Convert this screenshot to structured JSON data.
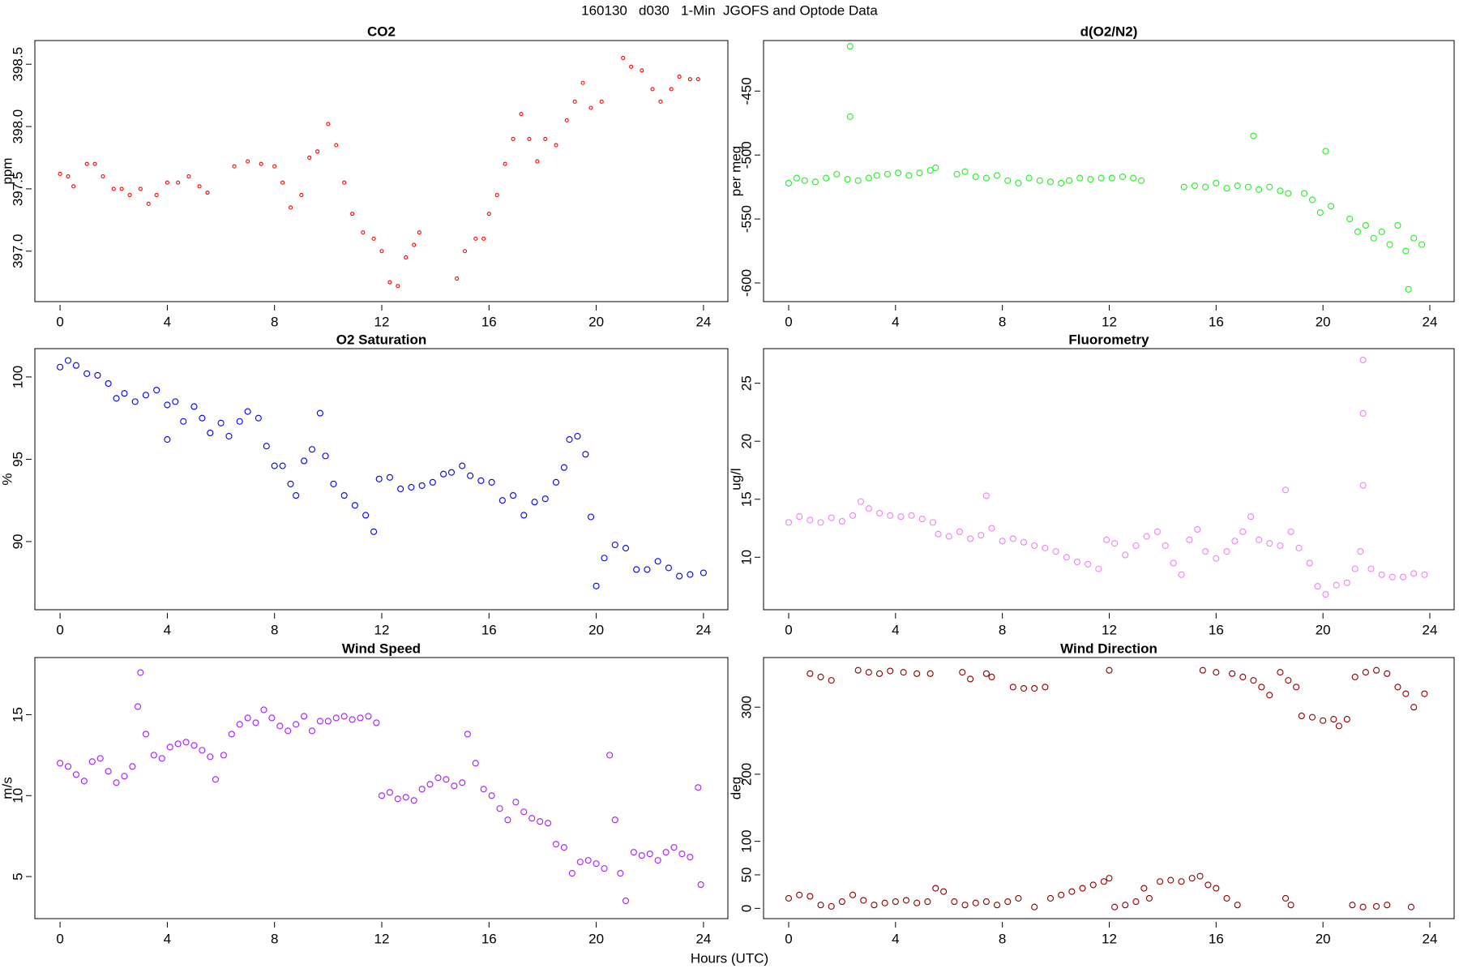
{
  "title": "160130   d030   1-Min  JGOFS and Optode Data",
  "x_label": "Hours (UTC)",
  "chart_data": [
    {
      "type": "scatter",
      "title": "CO2",
      "y_label": "ppm",
      "color": "#ff0000",
      "xlim": [
        -0.94,
        24.91
      ],
      "xticks": [
        0,
        4,
        8,
        12,
        16,
        20,
        24
      ],
      "ylim": [
        396.595,
        398.69
      ],
      "yticks": [
        {
          "value": 397.0,
          "label": "397.0"
        },
        {
          "value": 397.5,
          "label": "397.5"
        },
        {
          "value": 398.0,
          "label": "398.0"
        },
        {
          "value": 398.5,
          "label": "398.5"
        }
      ],
      "x": [
        0.0,
        0.3,
        0.5,
        1.0,
        1.3,
        1.6,
        2.0,
        2.3,
        2.6,
        3.0,
        3.3,
        3.6,
        4.0,
        4.4,
        4.8,
        5.2,
        5.5,
        6.5,
        7.0,
        7.5,
        8.0,
        8.3,
        8.6,
        9.0,
        9.3,
        9.6,
        10.0,
        10.3,
        10.6,
        10.9,
        11.3,
        11.7,
        12.0,
        12.3,
        12.6,
        12.9,
        13.2,
        13.4,
        14.8,
        15.1,
        15.5,
        15.8,
        16.0,
        16.3,
        16.6,
        16.9,
        17.2,
        17.5,
        17.8,
        18.1,
        18.5,
        18.9,
        19.2,
        19.5,
        19.8,
        20.2,
        21.0,
        21.3,
        21.7,
        22.1,
        22.4,
        22.8,
        23.1,
        23.5,
        23.8
      ],
      "values": [
        397.62,
        397.6,
        397.52,
        397.7,
        397.7,
        397.6,
        397.5,
        397.5,
        397.45,
        397.5,
        397.38,
        397.45,
        397.55,
        397.55,
        397.6,
        397.52,
        397.47,
        397.68,
        397.72,
        397.7,
        397.68,
        397.55,
        397.35,
        397.45,
        397.75,
        397.8,
        398.02,
        397.85,
        397.55,
        397.3,
        397.15,
        397.1,
        397.0,
        396.75,
        396.72,
        396.95,
        397.05,
        397.15,
        396.78,
        397.0,
        397.1,
        397.1,
        397.3,
        397.45,
        397.7,
        397.9,
        398.1,
        397.9,
        397.72,
        397.9,
        397.85,
        398.05,
        398.2,
        398.35,
        398.15,
        398.2,
        398.55,
        398.48,
        398.45,
        398.3,
        398.2,
        398.3,
        398.4,
        398.38,
        398.38
      ]
    },
    {
      "type": "scatter",
      "title": "d(O2/N2)",
      "y_label": "per meg",
      "color": "#22ee22",
      "xlim": [
        -0.94,
        24.91
      ],
      "xticks": [
        0,
        4,
        8,
        12,
        16,
        20,
        24
      ],
      "ylim": [
        -614.6,
        -410.5
      ],
      "yticks": [
        -600,
        -550,
        -500,
        -450
      ],
      "x": [
        0,
        0.3,
        0.6,
        1.0,
        1.4,
        1.8,
        2.2,
        2.3,
        2.3,
        2.6,
        3.0,
        3.3,
        3.7,
        4.1,
        4.5,
        4.9,
        5.3,
        5.5,
        6.3,
        6.6,
        7.0,
        7.4,
        7.8,
        8.2,
        8.6,
        9.0,
        9.4,
        9.8,
        10.2,
        10.5,
        10.9,
        11.3,
        11.7,
        12.1,
        12.5,
        12.9,
        13.2,
        14.8,
        15.2,
        15.6,
        16.0,
        16.4,
        16.8,
        17.2,
        17.4,
        17.6,
        18.0,
        18.4,
        18.7,
        19.3,
        19.6,
        19.9,
        20.1,
        20.3,
        21.0,
        21.3,
        21.6,
        21.9,
        22.2,
        22.5,
        22.8,
        23.1,
        23.2,
        23.4,
        23.7
      ],
      "values": [
        -522,
        -518,
        -520,
        -521,
        -518,
        -515,
        -519,
        -415,
        -470,
        -520,
        -518,
        -516,
        -515,
        -514,
        -516,
        -514,
        -512,
        -510,
        -515,
        -513,
        -517,
        -518,
        -516,
        -520,
        -522,
        -518,
        -520,
        -521,
        -522,
        -520,
        -518,
        -519,
        -518,
        -518,
        -517,
        -518,
        -520,
        -525,
        -524,
        -525,
        -522,
        -526,
        -524,
        -525,
        -485,
        -527,
        -525,
        -528,
        -530,
        -530,
        -535,
        -545,
        -497,
        -540,
        -550,
        -560,
        -555,
        -565,
        -560,
        -570,
        -555,
        -575,
        -605,
        -565,
        -570
      ]
    },
    {
      "type": "scatter",
      "title": "O2 Saturation",
      "y_label": "%",
      "color": "#0000ee",
      "xlim": [
        -0.94,
        24.91
      ],
      "xticks": [
        0,
        4,
        8,
        12,
        16,
        20,
        24
      ],
      "ylim": [
        85.86,
        101.72
      ],
      "yticks": [
        90,
        95,
        100
      ],
      "x": [
        0,
        0.3,
        0.6,
        1.0,
        1.4,
        1.8,
        2.1,
        2.4,
        2.8,
        3.2,
        3.6,
        4.0,
        4.0,
        4.3,
        4.6,
        5.0,
        5.3,
        5.6,
        6.0,
        6.3,
        6.7,
        7.0,
        7.4,
        7.7,
        8.0,
        8.3,
        8.6,
        8.8,
        9.1,
        9.4,
        9.7,
        9.9,
        10.2,
        10.6,
        11.0,
        11.4,
        11.7,
        11.9,
        12.3,
        12.7,
        13.1,
        13.5,
        13.9,
        14.3,
        14.6,
        15.0,
        15.3,
        15.7,
        16.1,
        16.5,
        16.9,
        17.3,
        17.7,
        18.1,
        18.5,
        18.8,
        19.0,
        19.3,
        19.6,
        19.8,
        20.0,
        20.3,
        20.7,
        21.1,
        21.5,
        21.9,
        22.3,
        22.7,
        23.1,
        23.5,
        24.0
      ],
      "values": [
        100.6,
        101.0,
        100.7,
        100.2,
        100.1,
        99.6,
        98.7,
        99.0,
        98.5,
        98.9,
        99.2,
        98.3,
        96.2,
        98.5,
        97.3,
        98.2,
        97.5,
        96.6,
        97.2,
        96.4,
        97.3,
        97.9,
        97.5,
        95.8,
        94.6,
        94.6,
        93.5,
        92.8,
        94.9,
        95.6,
        97.8,
        95.2,
        93.5,
        92.8,
        92.2,
        91.6,
        90.6,
        93.8,
        93.9,
        93.2,
        93.3,
        93.4,
        93.6,
        94.1,
        94.2,
        94.6,
        94.0,
        93.7,
        93.6,
        92.5,
        92.8,
        91.6,
        92.4,
        92.6,
        93.6,
        94.5,
        96.2,
        96.4,
        95.3,
        91.5,
        87.3,
        89.0,
        89.8,
        89.6,
        88.3,
        88.3,
        88.8,
        88.4,
        87.9,
        88.0,
        88.1
      ]
    },
    {
      "type": "scatter",
      "title": "Fluorometry",
      "y_label": "ug/l",
      "color": "#ee82ee",
      "xlim": [
        -0.94,
        24.91
      ],
      "xticks": [
        0,
        4,
        8,
        12,
        16,
        20,
        24
      ],
      "ylim": [
        5.48,
        27.98
      ],
      "yticks": [
        10,
        15,
        20,
        25
      ],
      "x": [
        0,
        0.4,
        0.8,
        1.2,
        1.6,
        2.0,
        2.4,
        2.7,
        3.0,
        3.4,
        3.8,
        4.2,
        4.6,
        5.0,
        5.4,
        5.6,
        6.0,
        6.4,
        6.8,
        7.2,
        7.4,
        7.6,
        8.0,
        8.4,
        8.8,
        9.2,
        9.6,
        10.0,
        10.4,
        10.8,
        11.2,
        11.6,
        11.9,
        12.2,
        12.6,
        13.0,
        13.4,
        13.8,
        14.1,
        14.4,
        14.7,
        15.0,
        15.3,
        15.6,
        16.0,
        16.4,
        16.7,
        17.0,
        17.3,
        17.6,
        18.0,
        18.4,
        18.6,
        18.8,
        19.1,
        19.5,
        19.8,
        20.1,
        20.5,
        20.9,
        21.2,
        21.4,
        21.5,
        21.5,
        21.5,
        21.8,
        22.2,
        22.6,
        23.0,
        23.4,
        23.8
      ],
      "values": [
        13,
        13.5,
        13.2,
        13.0,
        13.4,
        13.1,
        13.6,
        14.8,
        14.2,
        13.8,
        13.6,
        13.5,
        13.6,
        13.3,
        13.0,
        12.0,
        11.8,
        12.2,
        11.6,
        11.9,
        15.3,
        12.5,
        11.4,
        11.6,
        11.3,
        11.0,
        10.8,
        10.5,
        10.0,
        9.6,
        9.4,
        9.0,
        11.5,
        11.2,
        10.2,
        11.0,
        11.8,
        12.2,
        11.0,
        9.5,
        8.5,
        11.5,
        12.4,
        10.5,
        9.9,
        10.5,
        11.4,
        12.2,
        13.5,
        11.5,
        11.2,
        11.0,
        15.8,
        12.2,
        10.8,
        9.5,
        7.5,
        6.8,
        7.6,
        7.8,
        9.0,
        10.5,
        22.4,
        27.0,
        16.2,
        9.0,
        8.5,
        8.3,
        8.3,
        8.6,
        8.5
      ]
    },
    {
      "type": "scatter",
      "title": "Wind Speed",
      "y_label": "m/s",
      "color": "#a020f0",
      "xlim": [
        -0.94,
        24.91
      ],
      "xticks": [
        0,
        4,
        8,
        12,
        16,
        20,
        24
      ],
      "ylim": [
        2.4,
        18.53
      ],
      "yticks": [
        5,
        10,
        15
      ],
      "x": [
        0,
        0.3,
        0.6,
        0.9,
        1.2,
        1.5,
        1.8,
        2.1,
        2.4,
        2.7,
        2.9,
        3.0,
        3.2,
        3.5,
        3.8,
        4.1,
        4.4,
        4.7,
        5.0,
        5.3,
        5.6,
        5.8,
        6.1,
        6.4,
        6.7,
        7.0,
        7.3,
        7.6,
        7.9,
        8.2,
        8.5,
        8.8,
        9.1,
        9.4,
        9.7,
        10.0,
        10.3,
        10.6,
        10.9,
        11.2,
        11.5,
        11.8,
        12.0,
        12.3,
        12.6,
        12.9,
        13.2,
        13.5,
        13.8,
        14.1,
        14.4,
        14.7,
        15.0,
        15.2,
        15.5,
        15.8,
        16.1,
        16.4,
        16.7,
        17.0,
        17.3,
        17.6,
        17.9,
        18.2,
        18.5,
        18.8,
        19.1,
        19.4,
        19.7,
        20.0,
        20.3,
        20.5,
        20.7,
        20.9,
        21.1,
        21.4,
        21.7,
        22.0,
        22.3,
        22.6,
        22.9,
        23.2,
        23.5,
        23.8,
        23.9
      ],
      "values": [
        12.0,
        11.8,
        11.3,
        10.9,
        12.1,
        12.3,
        11.5,
        10.8,
        11.2,
        11.8,
        15.5,
        17.6,
        13.8,
        12.5,
        12.3,
        13.0,
        13.2,
        13.3,
        13.1,
        12.8,
        12.4,
        11.0,
        12.5,
        13.8,
        14.4,
        14.8,
        14.5,
        15.3,
        14.8,
        14.3,
        14.0,
        14.4,
        14.9,
        14.0,
        14.6,
        14.6,
        14.8,
        14.9,
        14.7,
        14.8,
        14.9,
        14.5,
        10.0,
        10.2,
        9.8,
        9.9,
        9.7,
        10.4,
        10.7,
        11.1,
        11.0,
        10.6,
        10.8,
        13.8,
        12.0,
        10.4,
        10.0,
        9.2,
        8.5,
        9.6,
        9.0,
        8.6,
        8.4,
        8.3,
        7.0,
        6.8,
        5.2,
        5.9,
        6.0,
        5.8,
        5.5,
        12.5,
        8.5,
        5.2,
        3.5,
        6.5,
        6.3,
        6.4,
        6.0,
        6.5,
        6.8,
        6.4,
        6.2,
        10.5,
        4.5
      ]
    },
    {
      "type": "scatter",
      "title": "Wind Direction",
      "y_label": "deg",
      "color": "#8b0000",
      "xlim": [
        -0.94,
        24.91
      ],
      "xticks": [
        0,
        4,
        8,
        12,
        16,
        20,
        24
      ],
      "ylim": [
        -15.3,
        374
      ],
      "yticks": [
        0,
        50,
        100,
        200,
        300
      ],
      "x": [
        0.8,
        1.2,
        1.6,
        2.6,
        3.0,
        3.4,
        3.8,
        4.3,
        4.8,
        5.3,
        6.5,
        6.8,
        7.4,
        7.6,
        8.4,
        8.8,
        9.2,
        9.6,
        12.0,
        15.5,
        16.0,
        16.6,
        17.0,
        17.4,
        17.7,
        18.0,
        18.4,
        18.7,
        19.0,
        19.2,
        19.6,
        20.0,
        20.4,
        20.6,
        20.9,
        21.2,
        21.6,
        22.0,
        22.4,
        22.8,
        23.1,
        23.4,
        23.8,
        0,
        0.4,
        0.8,
        1.2,
        1.6,
        2.0,
        2.4,
        2.8,
        3.2,
        3.6,
        4.0,
        4.4,
        4.8,
        5.2,
        5.5,
        5.8,
        6.2,
        6.6,
        7.0,
        7.4,
        7.8,
        8.2,
        8.6,
        9.2,
        9.8,
        10.2,
        10.6,
        11.0,
        11.4,
        11.8,
        12.0,
        12.2,
        12.6,
        13.0,
        13.3,
        13.5,
        13.9,
        14.3,
        14.7,
        15.1,
        15.4,
        15.7,
        16.0,
        16.4,
        16.8,
        18.6,
        18.8,
        21.1,
        21.5,
        22.0,
        22.4,
        23.3
      ],
      "values": [
        350,
        345,
        340,
        355,
        352,
        350,
        354,
        352,
        350,
        350,
        352,
        342,
        350,
        345,
        330,
        328,
        328,
        330,
        355,
        355,
        352,
        350,
        345,
        340,
        330,
        318,
        352,
        340,
        330,
        287,
        285,
        280,
        282,
        272,
        282,
        345,
        352,
        355,
        350,
        330,
        320,
        300,
        320,
        15,
        20,
        18,
        5,
        3,
        10,
        20,
        12,
        5,
        8,
        10,
        12,
        8,
        10,
        30,
        25,
        10,
        5,
        8,
        10,
        5,
        10,
        15,
        2,
        15,
        20,
        25,
        30,
        35,
        40,
        45,
        2,
        5,
        10,
        30,
        15,
        40,
        42,
        40,
        45,
        48,
        35,
        30,
        15,
        5,
        15,
        5,
        5,
        2,
        3,
        5,
        2
      ]
    }
  ]
}
